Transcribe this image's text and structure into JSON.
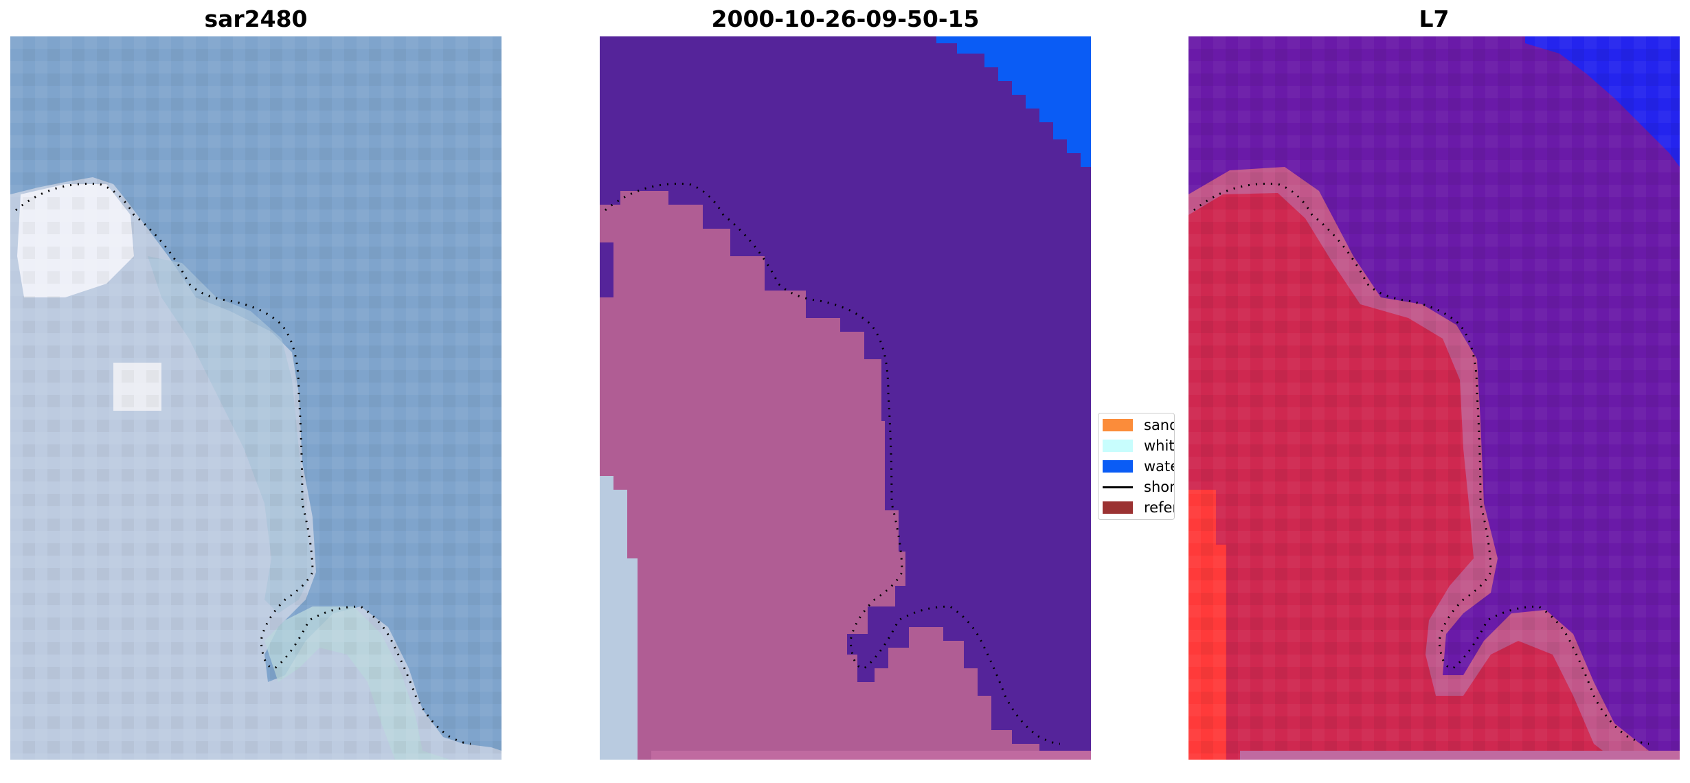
{
  "panels": [
    {
      "title": "sar2480"
    },
    {
      "title": "2000-10-26-09-50-15"
    },
    {
      "title": "L7"
    }
  ],
  "legend": {
    "items": [
      {
        "label": "sand",
        "color": "#fb8c3a",
        "kind": "swatch"
      },
      {
        "label": "whitewater",
        "color": "#c8fdfd",
        "kind": "swatch"
      },
      {
        "label": "water",
        "color": "#0a5cf5",
        "kind": "swatch"
      },
      {
        "label": "shoreline",
        "color": "#000000",
        "kind": "line"
      },
      {
        "label": "reference",
        "color": "#9b3232",
        "kind": "swatch"
      }
    ]
  },
  "colors": {
    "ocean_rgb": "#7fa4cc",
    "land_rgb": "#c3cfe2",
    "whitewater_bright": "#f2f4fa",
    "water_class": "#55249a",
    "land_class": "#b05d94",
    "deep_water": "#0a5cf5",
    "l7_water": "#6a1aa8",
    "l7_land": "#d0284a",
    "l7_deep": "#2020f0",
    "l7_bright_red": "#ff3030"
  }
}
